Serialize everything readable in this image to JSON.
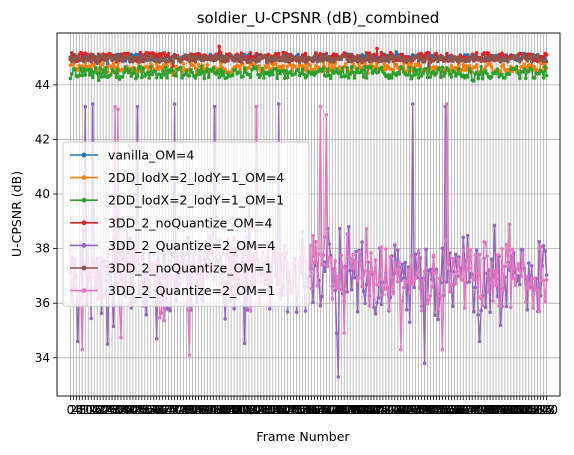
{
  "chart_data": {
    "type": "line",
    "title": "soldier_U-CPSNR (dB)_combined",
    "xlabel": "Frame Number",
    "ylabel": "U-CPSNR (dB)",
    "xlim": [
      -9,
      329
    ],
    "ylim": [
      32.6,
      45.9
    ],
    "yticks": [
      34,
      36,
      38,
      40,
      42,
      44
    ],
    "grid": true,
    "legend_position": "center-left",
    "series": [
      {
        "name": "vanilla_OM=4",
        "color": "#1f77b4",
        "pattern": {
          "kind": "steady",
          "base": 45.0,
          "amp": 0.12,
          "seed": 1
        }
      },
      {
        "name": "2DD_lodX=2_lodY=1_OM=4",
        "color": "#ff7f0e",
        "pattern": {
          "kind": "steady",
          "base": 44.62,
          "amp": 0.18,
          "seed": 2
        }
      },
      {
        "name": "2DD_lodX=2_lodY=1_OM=1",
        "color": "#2ca02c",
        "pattern": {
          "kind": "steady",
          "base": 44.45,
          "amp": 0.22,
          "seed": 3
        }
      },
      {
        "name": "3DD_2_noQuantize_OM=4",
        "color": "#d62728",
        "pattern": {
          "kind": "steady",
          "base": 45.02,
          "amp": 0.16,
          "seed": 4
        }
      },
      {
        "name": "3DD_2_Quantize=2_OM=4",
        "color": "#9467bd",
        "pattern": {
          "kind": "noisy",
          "base": 37.0,
          "amp": 1.2,
          "seed": 5,
          "spikes": [
            [
              10,
              43.2
            ],
            [
              15,
              43.3
            ],
            [
              45,
              43.2
            ],
            [
              70,
              43.3
            ],
            [
              97,
              43.2
            ],
            [
              140,
              43.3
            ],
            [
              230,
              43.3
            ],
            [
              252,
              43.2
            ]
          ],
          "dips": [
            [
              5,
              34.6
            ],
            [
              25,
              34.5
            ],
            [
              58,
              34.7
            ],
            [
              180,
              33.3
            ],
            [
              238,
              33.8
            ],
            [
              275,
              34.6
            ]
          ]
        }
      },
      {
        "name": "3DD_2_noQuantize_OM=1",
        "color": "#8c564b",
        "pattern": {
          "kind": "steady",
          "base": 44.95,
          "amp": 0.12,
          "seed": 6
        }
      },
      {
        "name": "3DD_2_Quantize=2_OM=1",
        "color": "#e377c2",
        "pattern": {
          "kind": "noisy",
          "base": 37.0,
          "amp": 1.0,
          "seed": 7,
          "spikes": [
            [
              30,
              43.2
            ],
            [
              32,
              43.1
            ],
            [
              125,
              43.2
            ],
            [
              168,
              43.2
            ],
            [
              172,
              42.9
            ],
            [
              253,
              43.3
            ]
          ],
          "dips": [
            [
              8,
              34.3
            ],
            [
              80,
              34.1
            ],
            [
              222,
              34.3
            ],
            [
              250,
              34.3
            ]
          ]
        }
      }
    ]
  }
}
